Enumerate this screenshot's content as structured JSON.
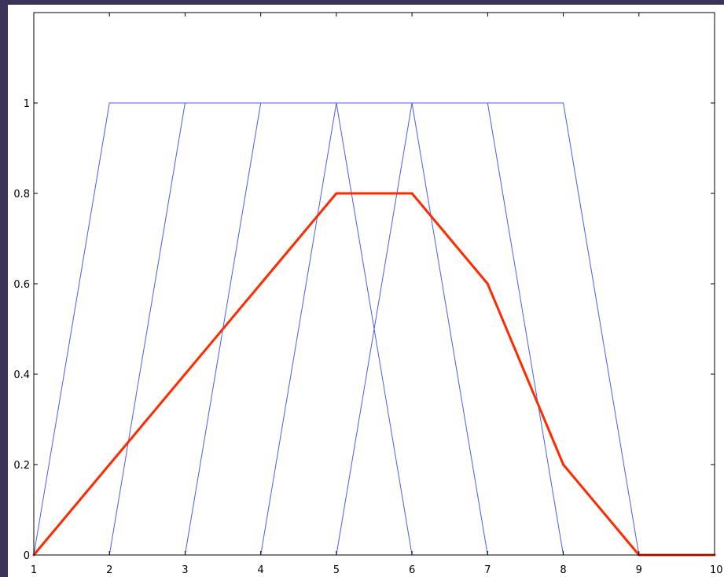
{
  "chart_data": {
    "type": "line",
    "title": "",
    "xlabel": "",
    "ylabel": "",
    "xlim": [
      1,
      10
    ],
    "ylim": [
      0,
      1.2
    ],
    "x_ticks": [
      "1",
      "2",
      "3",
      "4",
      "5",
      "6",
      "7",
      "8",
      "9",
      "10"
    ],
    "y_ticks": [
      "0",
      "0.2",
      "0.4",
      "0.6",
      "0.8",
      "1"
    ],
    "grid": false,
    "legend": false,
    "series": [
      {
        "color": "#4a5cf0",
        "width": "thin",
        "points": [
          [
            1,
            0
          ],
          [
            2,
            1
          ],
          [
            3,
            1
          ],
          [
            4,
            1
          ],
          [
            5,
            1
          ],
          [
            6,
            1
          ],
          [
            7,
            1
          ],
          [
            8,
            1
          ],
          [
            9,
            0
          ],
          [
            10,
            0
          ]
        ]
      },
      {
        "color": "#4a5cf0",
        "width": "thin",
        "points": [
          [
            2,
            0
          ],
          [
            3,
            1
          ]
        ]
      },
      {
        "color": "#4a5cf0",
        "width": "thin",
        "points": [
          [
            3,
            0
          ],
          [
            4,
            1
          ]
        ]
      },
      {
        "color": "#4a5cf0",
        "width": "thin",
        "points": [
          [
            4,
            0
          ],
          [
            5,
            1
          ]
        ]
      },
      {
        "color": "#4a5cf0",
        "width": "thin",
        "points": [
          [
            5,
            0
          ],
          [
            6,
            1
          ]
        ]
      },
      {
        "color": "#4a5cf0",
        "width": "thin",
        "points": [
          [
            5,
            1
          ],
          [
            6,
            0
          ]
        ]
      },
      {
        "color": "#4a5cf0",
        "width": "thin",
        "points": [
          [
            6,
            1
          ],
          [
            7,
            0
          ]
        ]
      },
      {
        "color": "#4a5cf0",
        "width": "thin",
        "points": [
          [
            7,
            1
          ],
          [
            8,
            0
          ]
        ]
      },
      {
        "color": "#4a5cf0",
        "width": "thin",
        "points": [
          [
            1,
            0
          ],
          [
            9,
            0
          ]
        ]
      },
      {
        "color": "#ff2a00",
        "width": "thick",
        "points": [
          [
            1,
            0
          ],
          [
            2,
            0.2
          ],
          [
            3,
            0.4
          ],
          [
            4,
            0.6
          ],
          [
            5,
            0.8
          ],
          [
            6,
            0.8
          ],
          [
            7,
            0.6
          ],
          [
            8,
            0.2
          ],
          [
            9,
            0
          ],
          [
            10,
            0
          ]
        ]
      }
    ]
  }
}
